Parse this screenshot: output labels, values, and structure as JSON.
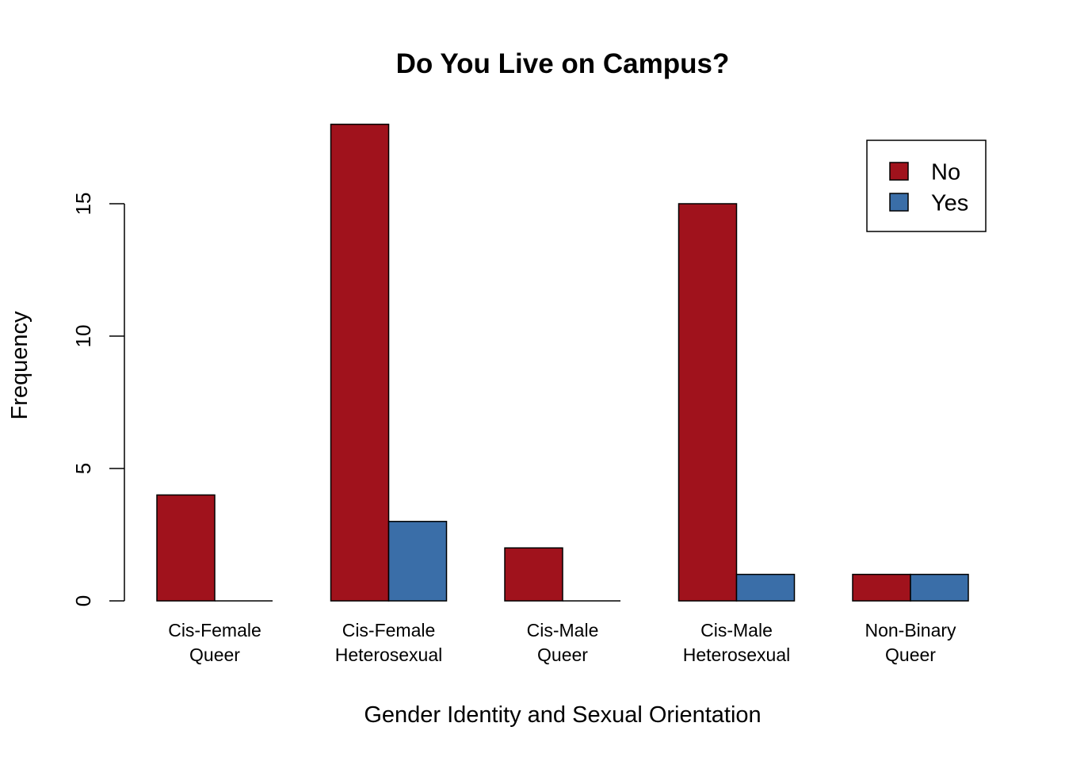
{
  "chart_data": {
    "type": "bar",
    "layout": "grouped",
    "title": "Do You Live on Campus?",
    "xlabel": "Gender Identity and Sexual Orientation",
    "ylabel": "Frequency",
    "ylim": [
      0,
      18
    ],
    "yticks": [
      0,
      5,
      10,
      15
    ],
    "grid": false,
    "legend_position": "top-right",
    "categories": [
      [
        "Cis-Female",
        "Queer"
      ],
      [
        "Cis-Female",
        "Heterosexual"
      ],
      [
        "Cis-Male",
        "Queer"
      ],
      [
        "Cis-Male",
        "Heterosexual"
      ],
      [
        "Non-Binary",
        "Queer"
      ]
    ],
    "series": [
      {
        "name": "No",
        "color": "#A0121C",
        "values": [
          4,
          18,
          2,
          15,
          1
        ]
      },
      {
        "name": "Yes",
        "color": "#3A6EA8",
        "values": [
          0,
          3,
          0,
          1,
          1
        ]
      }
    ]
  }
}
